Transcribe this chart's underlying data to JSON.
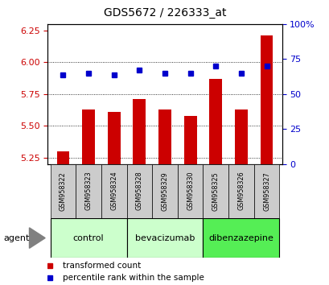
{
  "title": "GDS5672 / 226333_at",
  "samples": [
    "GSM958322",
    "GSM958323",
    "GSM958324",
    "GSM958328",
    "GSM958329",
    "GSM958330",
    "GSM958325",
    "GSM958326",
    "GSM958327"
  ],
  "bar_values": [
    5.3,
    5.63,
    5.61,
    5.71,
    5.63,
    5.58,
    5.87,
    5.63,
    6.21
  ],
  "dot_values": [
    64,
    65,
    64,
    67,
    65,
    65,
    70,
    65,
    70
  ],
  "ylim_left": [
    5.2,
    6.3
  ],
  "ylim_right": [
    0,
    100
  ],
  "yticks_left": [
    5.25,
    5.5,
    5.75,
    6.0,
    6.25
  ],
  "yticks_right": [
    0,
    25,
    50,
    75,
    100
  ],
  "bar_color": "#cc0000",
  "dot_color": "#0000cc",
  "groups": [
    {
      "label": "control",
      "indices": [
        0,
        1,
        2
      ],
      "color": "#ccffcc"
    },
    {
      "label": "bevacizumab",
      "indices": [
        3,
        4,
        5
      ],
      "color": "#ccffcc"
    },
    {
      "label": "dibenzazepine",
      "indices": [
        6,
        7,
        8
      ],
      "color": "#55ee55"
    }
  ],
  "agent_label": "agent",
  "legend_bar_label": "transformed count",
  "legend_dot_label": "percentile rank within the sample",
  "grid_color": "black",
  "tick_label_color_left": "#cc0000",
  "tick_label_color_right": "#0000cc",
  "bar_bottom": 5.2,
  "xticklabel_bg": "#cccccc",
  "title_fontsize": 10,
  "bar_width": 0.5
}
